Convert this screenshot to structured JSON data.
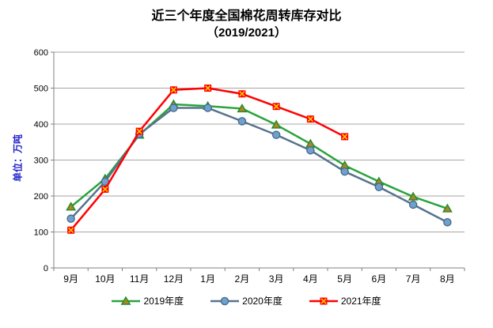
{
  "title": {
    "line1": "近三个年度全国棉花周转库存对比",
    "line2": "（2019/2021）"
  },
  "y_axis": {
    "label": "单位：万吨",
    "label_color": "#2222CC"
  },
  "chart_data": {
    "type": "line",
    "title": "近三个年度全国棉花周转库存对比（2019/2021）",
    "ylabel": "单位：万吨",
    "xlabel": "",
    "ylim": [
      0,
      600
    ],
    "yticks": [
      0,
      100,
      200,
      300,
      400,
      500,
      600
    ],
    "grid": true,
    "legend_position": "bottom",
    "categories": [
      "9月",
      "10月",
      "11月",
      "12月",
      "1月",
      "2月",
      "3月",
      "4月",
      "5月",
      "6月",
      "7月",
      "8月"
    ],
    "series": [
      {
        "name": "2019年度",
        "color": "#29A43B",
        "marker": "triangle",
        "marker_fill": "#B0861E",
        "marker_stroke": "#1F8A2E",
        "values": [
          170,
          248,
          370,
          455,
          450,
          443,
          398,
          345,
          285,
          240,
          198,
          165
        ]
      },
      {
        "name": "2020年度",
        "color": "#56738C",
        "marker": "circle",
        "marker_fill": "#6FA0CE",
        "marker_stroke": "#46688C",
        "values": [
          137,
          240,
          372,
          445,
          445,
          408,
          370,
          327,
          268,
          225,
          176,
          127
        ]
      },
      {
        "name": "2021年度",
        "color": "#FF0000",
        "marker": "x-square",
        "marker_fill": "#FFD700",
        "marker_stroke": "#FF0000",
        "values": [
          105,
          219,
          380,
          495,
          500,
          484,
          449,
          414,
          365,
          null,
          null,
          null
        ]
      }
    ],
    "colors": {
      "grid": "#A6A6A6",
      "axis": "#808080",
      "text": "#000000"
    }
  }
}
